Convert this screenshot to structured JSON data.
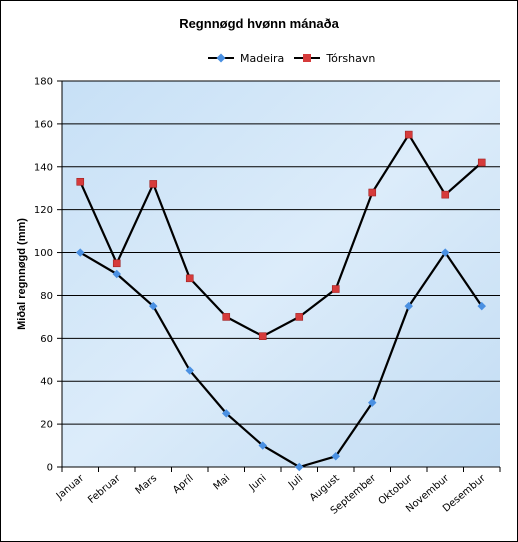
{
  "chart_data": {
    "type": "line",
    "title": "Regnnøgd hvønn mánaða",
    "xlabel": "",
    "ylabel": "Miðal regnnøgd (mm)",
    "categories": [
      "Januar",
      "Februar",
      "Mars",
      "Apríl",
      "Mai",
      "Juni",
      "Juli",
      "August",
      "September",
      "Oktobur",
      "Novembur",
      "Desembur"
    ],
    "ylim": [
      0,
      180
    ],
    "yticks": [
      "0",
      "20",
      "40",
      "60",
      "80",
      "100",
      "120",
      "140",
      "160",
      "180"
    ],
    "grid": true,
    "legend_position": "top",
    "series": [
      {
        "name": "Madeira",
        "color": "#4a90e2",
        "marker": "diamond",
        "values": [
          100,
          90,
          75,
          45,
          25,
          10,
          0,
          5,
          30,
          75,
          100,
          75
        ]
      },
      {
        "name": "Tórshavn",
        "color": "#d63b3b",
        "marker": "square",
        "values": [
          133,
          95,
          132,
          88,
          70,
          61,
          70,
          83,
          128,
          155,
          127,
          142
        ]
      }
    ]
  }
}
